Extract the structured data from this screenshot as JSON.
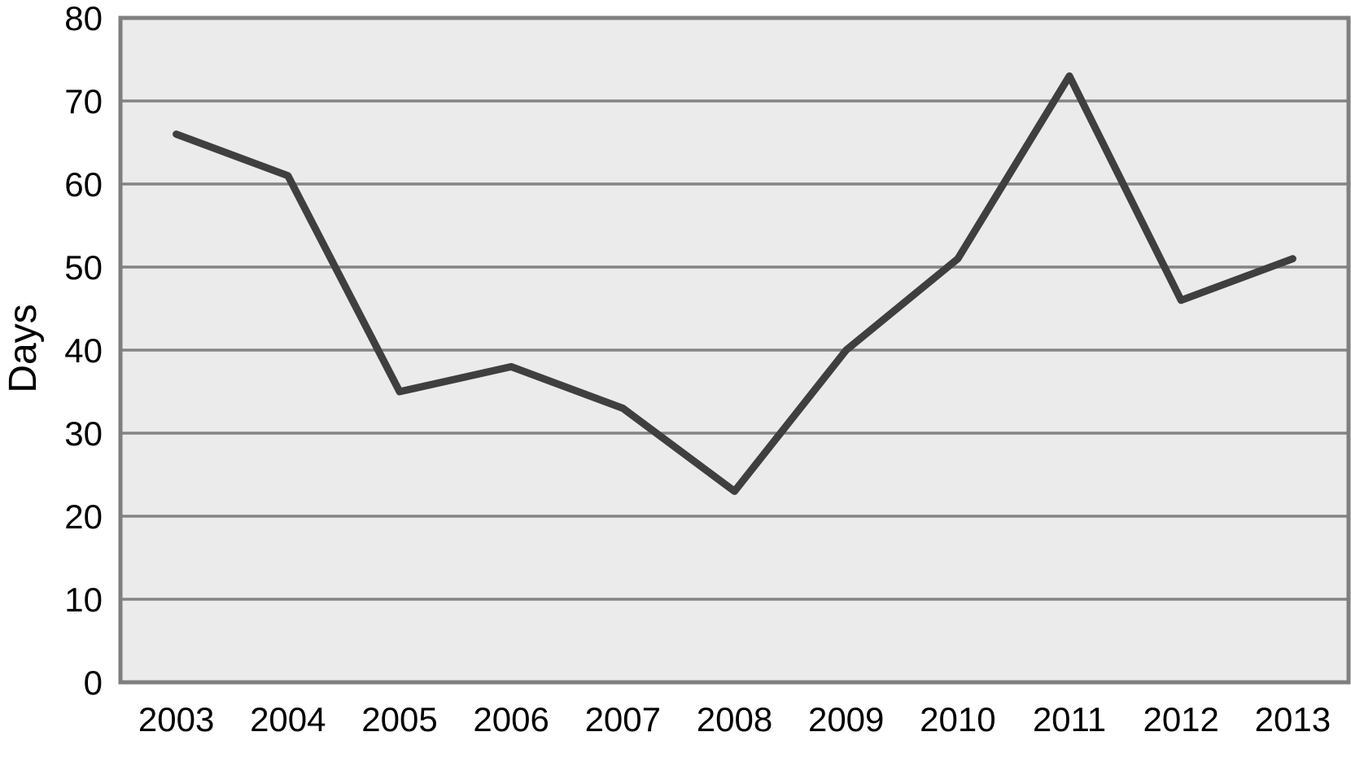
{
  "chart_data": {
    "type": "line",
    "categories": [
      "2003",
      "2004",
      "2005",
      "2006",
      "2007",
      "2008",
      "2009",
      "2010",
      "2011",
      "2012",
      "2013"
    ],
    "series": [
      {
        "name": "Days",
        "values": [
          66,
          61,
          35,
          38,
          33,
          23,
          40,
          51,
          73,
          46,
          51
        ]
      }
    ],
    "title": "",
    "xlabel": "",
    "ylabel": "Days",
    "ylim": [
      0,
      80
    ],
    "ytick_step": 10,
    "yticks": [
      "0",
      "10",
      "20",
      "30",
      "40",
      "50",
      "60",
      "70",
      "80"
    ],
    "grid": "horizontal",
    "legend_position": "none",
    "style": {
      "line_color": "#3f3f3f",
      "line_width": 9,
      "plot_bg": "#ebebeb",
      "grid_color": "#848484",
      "border_color": "#7f7f7f",
      "border_width": 5,
      "label_color": "#000000",
      "tick_font_size": 42,
      "axis_title_font_size": 48
    }
  }
}
